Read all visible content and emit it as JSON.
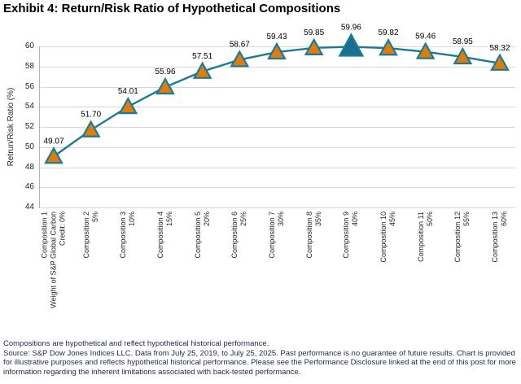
{
  "chart_data": {
    "type": "line",
    "title": "Exhibit 4: Return/Risk Ratio of Hypothetical Compositions",
    "ylabel": "Retrun/Risk Ratio (%)",
    "xlabel": "",
    "ylim": [
      44,
      60
    ],
    "ytick_step": 2,
    "grid": "horizontal",
    "legend": "none",
    "marker": "triangle",
    "highlight_index": 8,
    "categories": [
      [
        "Composition 1",
        "Weight of S&P Global Carbon",
        "Credit: 0%"
      ],
      [
        "Composition 2",
        "5%"
      ],
      [
        "Composition 3",
        "10%"
      ],
      [
        "Composition 4",
        "15%"
      ],
      [
        "Composition 5",
        "20%"
      ],
      [
        "Composition 6",
        "25%"
      ],
      [
        "Composition 7",
        "30%"
      ],
      [
        "Composition 8",
        "35%"
      ],
      [
        "Composition 9",
        "40%"
      ],
      [
        "Composition 10",
        "45%"
      ],
      [
        "Composition 11",
        "50%"
      ],
      [
        "Composition 12",
        "55%"
      ],
      [
        "Composition 13",
        "60%"
      ]
    ],
    "values": [
      49.07,
      51.7,
      54.01,
      55.96,
      57.51,
      58.67,
      59.43,
      59.85,
      59.96,
      59.82,
      59.46,
      58.95,
      58.32
    ],
    "point_labels": [
      "49.07",
      "51.70",
      "54.01",
      "55.96",
      "57.51",
      "58.67",
      "59.43",
      "59.85",
      "59.96",
      "59.82",
      "59.46",
      "58.95",
      "58.32"
    ],
    "colors": {
      "line": "#1d7a96",
      "marker_fill": "#de7d0c",
      "marker_stroke": "#1d7a96",
      "highlight_fill": "#186f8e",
      "gridline": "#d9d9d9",
      "axis": "#b3b3b3",
      "tick_text": "#262626",
      "point_label_text": "#000000"
    }
  },
  "footnotes": {
    "line1": "Compositions are hypothetical and reflect hypothetical historical performance.",
    "source": "Source: S&P Dow Jones Indices LLC. Data from July 25, 2019, to July 25, 2025. Past performance is no guarantee of future results. Chart is provided for illustrative purposes and reflects hypothetical historical performance. Please see the Performance Disclosure linked at the end of this post for more information regarding the inherent limitations associated with back-tested performance."
  }
}
